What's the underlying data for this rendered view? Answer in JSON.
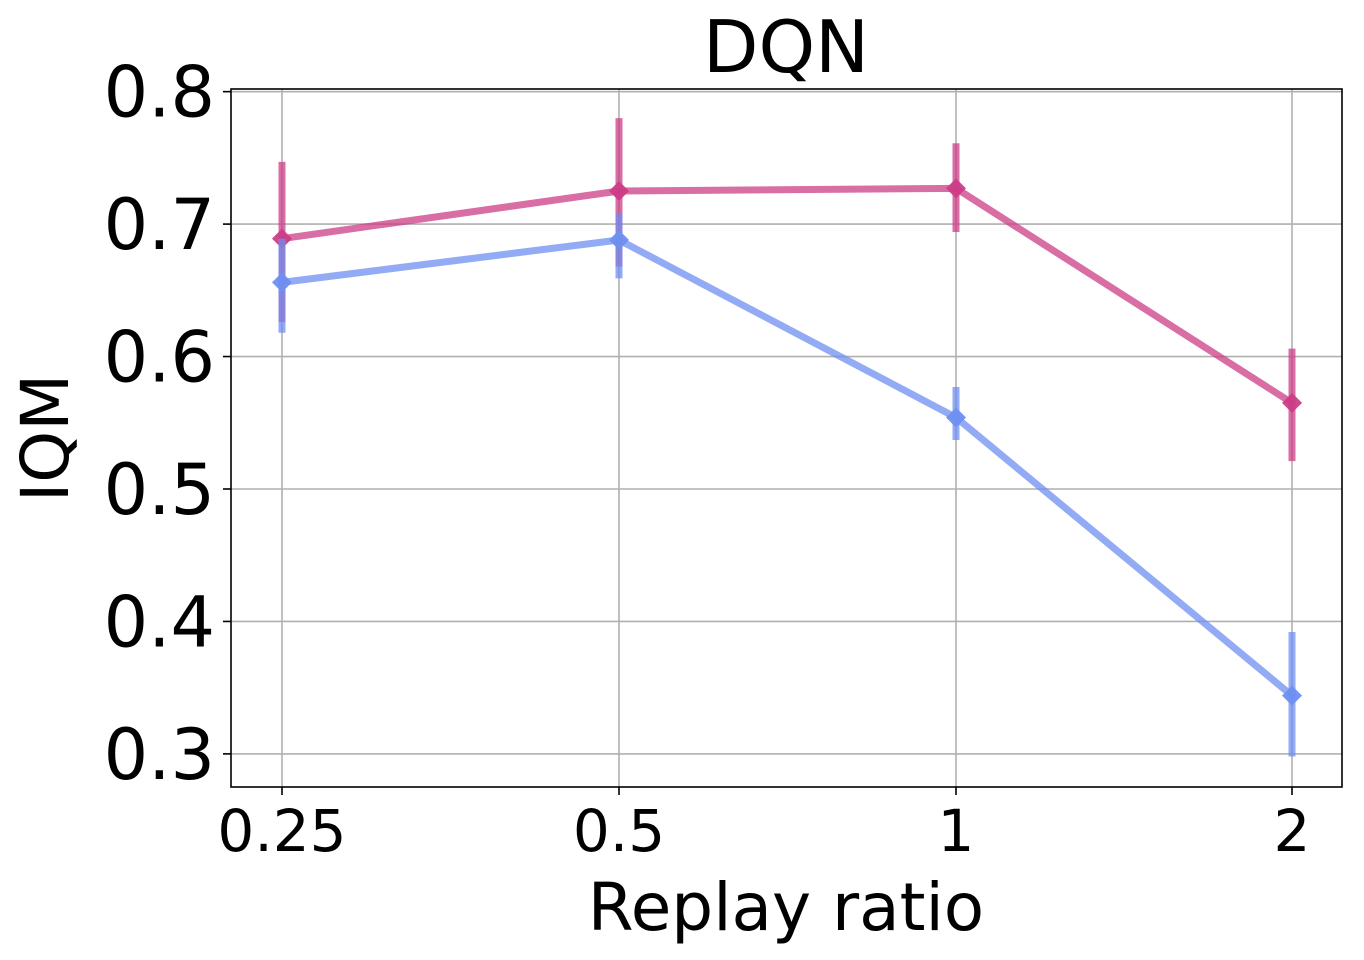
{
  "chart_data": {
    "type": "line",
    "title": "DQN",
    "xlabel": "Replay ratio",
    "ylabel": "IQM",
    "categories": [
      "0.25",
      "0.5",
      "1",
      "2"
    ],
    "yticks": [
      "0.3",
      "0.4",
      "0.5",
      "0.6",
      "0.7",
      "0.8"
    ],
    "ylim": [
      0.275,
      0.802
    ],
    "grid": true,
    "legend": "none",
    "series": [
      {
        "color": "#cc3d87",
        "values": [
          0.689,
          0.725,
          0.727,
          0.565
        ],
        "err_low": [
          0.626,
          0.668,
          0.694,
          0.521
        ],
        "err_high": [
          0.747,
          0.78,
          0.761,
          0.606
        ]
      },
      {
        "color": "#6f8ff0",
        "values": [
          0.656,
          0.688,
          0.554,
          0.344
        ],
        "err_low": [
          0.618,
          0.659,
          0.537,
          0.298
        ],
        "err_high": [
          0.689,
          0.708,
          0.577,
          0.392
        ]
      }
    ]
  }
}
